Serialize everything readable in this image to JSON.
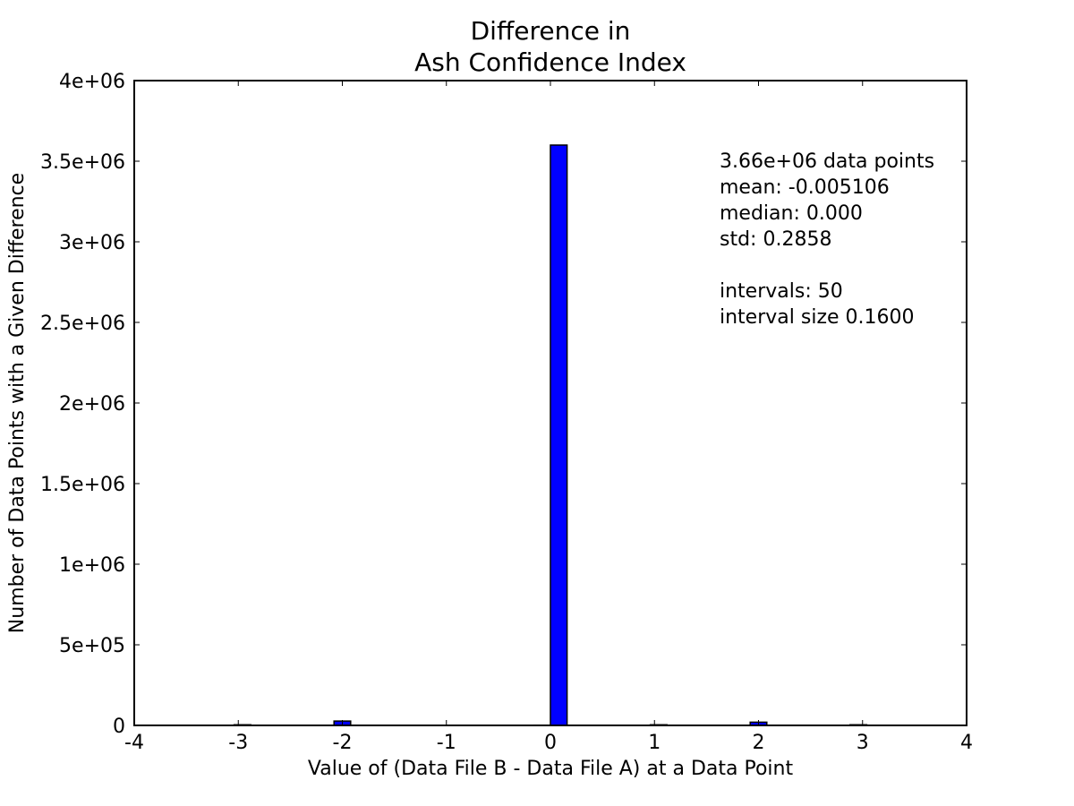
{
  "chart_data": {
    "type": "bar",
    "title_lines": [
      "Difference in",
      "Ash Confidence Index"
    ],
    "xlabel": "Value of (Data File B - Data File A) at a Data Point",
    "ylabel": "Number of Data Points with a Given Difference",
    "xlim": [
      -4,
      4
    ],
    "ylim": [
      0,
      4000000
    ],
    "x_ticks": [
      -4,
      -3,
      -2,
      -1,
      0,
      1,
      2,
      3,
      4
    ],
    "x_tick_labels": [
      "-4",
      "-3",
      "-2",
      "-1",
      "0",
      "1",
      "2",
      "3",
      "4"
    ],
    "y_ticks": [
      0,
      500000,
      1000000,
      1500000,
      2000000,
      2500000,
      3000000,
      3500000,
      4000000
    ],
    "y_tick_labels": [
      "0",
      "5e+05",
      "1e+06",
      "1.5e+06",
      "2e+06",
      "2.5e+06",
      "3e+06",
      "3.5e+06",
      "4e+06"
    ],
    "bin_width": 0.16,
    "bars": [
      {
        "x_start": -3.04,
        "value": 4000
      },
      {
        "x_start": -2.08,
        "value": 27000
      },
      {
        "x_start": -0.16,
        "value": 1500
      },
      {
        "x_start": 0.0,
        "value": 3600000
      },
      {
        "x_start": 0.96,
        "value": 4000
      },
      {
        "x_start": 1.92,
        "value": 20000
      },
      {
        "x_start": 2.88,
        "value": 4000
      }
    ],
    "bar_color": "#0000ff",
    "edge_color": "#000000",
    "grid": false,
    "stats_text": [
      "3.66e+06 data points",
      "mean: -0.005106",
      "median: 0.000",
      "std: 0.2858",
      "",
      "intervals: 50",
      "interval size 0.1600"
    ]
  }
}
